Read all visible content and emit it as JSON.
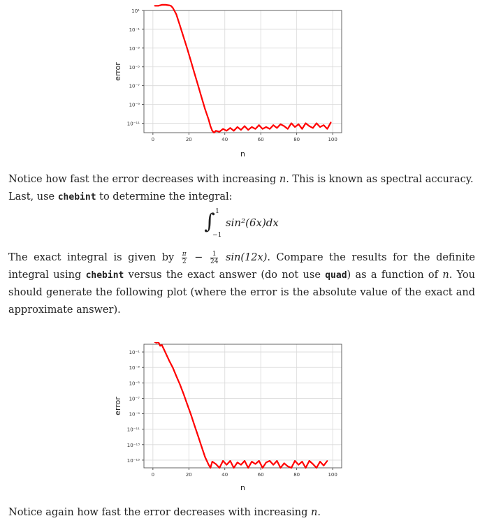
{
  "chart_data": [
    {
      "type": "line",
      "title": "",
      "xlabel": "n",
      "ylabel": "error",
      "xlim": [
        -5,
        105
      ],
      "yscale": "log",
      "ylim_exp": [
        -12,
        1
      ],
      "xticks": [
        "0",
        "20",
        "40",
        "60",
        "80",
        "100"
      ],
      "xtick_values": [
        0,
        20,
        40,
        60,
        80,
        100
      ],
      "yticks": [
        "10¹",
        "10⁻¹",
        "10⁻³",
        "10⁻⁵",
        "10⁻⁷",
        "10⁻⁹",
        "10⁻¹¹"
      ],
      "ytick_exponents": [
        1,
        -1,
        -3,
        -5,
        -7,
        -9,
        -11
      ],
      "grid": true,
      "series": [
        {
          "color": "#ff0000",
          "x": [
            1,
            3,
            5,
            7,
            9,
            10,
            11,
            13,
            15,
            17,
            19,
            21,
            23,
            25,
            27,
            29,
            31,
            32,
            33,
            34,
            35,
            37,
            39,
            41,
            43,
            45,
            47,
            49,
            51,
            53,
            55,
            57,
            59,
            61,
            63,
            65,
            67,
            69,
            71,
            73,
            75,
            77,
            79,
            81,
            83,
            85,
            87,
            89,
            91,
            93,
            95,
            97,
            99
          ],
          "log10_y": [
            1.5,
            1.5,
            1.6,
            1.6,
            1.55,
            1.5,
            1.3,
            0.6,
            -0.6,
            -1.8,
            -3.0,
            -4.3,
            -5.6,
            -6.9,
            -8.2,
            -9.5,
            -10.6,
            -11.3,
            -11.8,
            -12.0,
            -11.8,
            -11.9,
            -11.6,
            -11.8,
            -11.5,
            -11.8,
            -11.4,
            -11.7,
            -11.3,
            -11.7,
            -11.4,
            -11.6,
            -11.2,
            -11.6,
            -11.4,
            -11.6,
            -11.2,
            -11.5,
            -11.1,
            -11.3,
            -11.6,
            -11.0,
            -11.4,
            -11.1,
            -11.6,
            -11.0,
            -11.3,
            -11.5,
            -11.0,
            -11.4,
            -11.2,
            -11.6,
            -10.9
          ]
        }
      ]
    },
    {
      "type": "line",
      "title": "",
      "xlabel": "n",
      "ylabel": "error",
      "xlim": [
        -5,
        105
      ],
      "yscale": "log",
      "ylim_exp": [
        -16,
        0
      ],
      "xticks": [
        "0",
        "20",
        "40",
        "60",
        "80",
        "100"
      ],
      "xtick_values": [
        0,
        20,
        40,
        60,
        80,
        100
      ],
      "yticks": [
        "10⁻¹",
        "10⁻³",
        "10⁻⁵",
        "10⁻⁷",
        "10⁻⁹",
        "10⁻¹¹",
        "10⁻¹³",
        "10⁻¹⁵"
      ],
      "ytick_exponents": [
        -1,
        -3,
        -5,
        -7,
        -9,
        -11,
        -13,
        -15
      ],
      "grid": true,
      "series": [
        {
          "color": "#ff0000",
          "x": [
            1,
            2,
            3,
            4,
            5,
            6,
            7,
            9,
            11,
            13,
            15,
            17,
            19,
            21,
            23,
            25,
            27,
            29,
            31,
            32,
            33,
            35,
            37,
            39,
            41,
            43,
            45,
            47,
            49,
            51,
            53,
            55,
            57,
            59,
            61,
            63,
            65,
            67,
            69,
            71,
            73,
            75,
            77,
            79,
            81,
            83,
            85,
            87,
            89,
            91,
            93,
            95,
            97
          ],
          "log10_y": [
            0.3,
            0.2,
            0.3,
            -0.2,
            -0.1,
            -0.6,
            -1.1,
            -2.1,
            -3.0,
            -4.1,
            -5.2,
            -6.4,
            -7.7,
            -9.0,
            -10.4,
            -11.8,
            -13.2,
            -14.6,
            -15.6,
            -16.0,
            -15.2,
            -15.5,
            -16.0,
            -15.1,
            -15.6,
            -15.1,
            -16.0,
            -15.3,
            -15.6,
            -15.1,
            -16.0,
            -15.2,
            -15.5,
            -15.1,
            -16.0,
            -15.3,
            -15.1,
            -15.6,
            -15.1,
            -16.0,
            -15.4,
            -15.8,
            -16.0,
            -15.1,
            -15.6,
            -15.2,
            -16.0,
            -15.1,
            -15.5,
            -16.0,
            -15.2,
            -15.7,
            -15.1
          ]
        }
      ]
    }
  ],
  "text": {
    "p1_a": "Notice how fast the error decreases with increasing ",
    "p1_var": "n",
    "p1_b": ". This is known as spectral accuracy.",
    "p2_a": "Last, use ",
    "p2_code": "chebint",
    "p2_b": " to determine the integral:",
    "eq_int": "∫",
    "eq_upper": "1",
    "eq_lower": "−1",
    "eq_body": "sin²(6x)dx",
    "p3_a": "The exact integral is given by ",
    "p3_frac1_num": "π",
    "p3_frac1_den": "2",
    "p3_minus": " − ",
    "p3_frac2_num": "1",
    "p3_frac2_den": "24",
    "p3_sin": " sin(12x)",
    "p3_b": ". Compare the results for the definite integral using ",
    "p3_code1": "chebint",
    "p3_c": " versus the exact answer (do not use ",
    "p3_code2": "quad",
    "p3_d": ") as a function of ",
    "p3_var": "n",
    "p3_e": ". You should generate the following plot (where the error is the absolute value of the exact and approximate answer).",
    "p4_a": "Notice again how fast the error decreases with increasing ",
    "p4_var": "n",
    "p4_b": "."
  }
}
